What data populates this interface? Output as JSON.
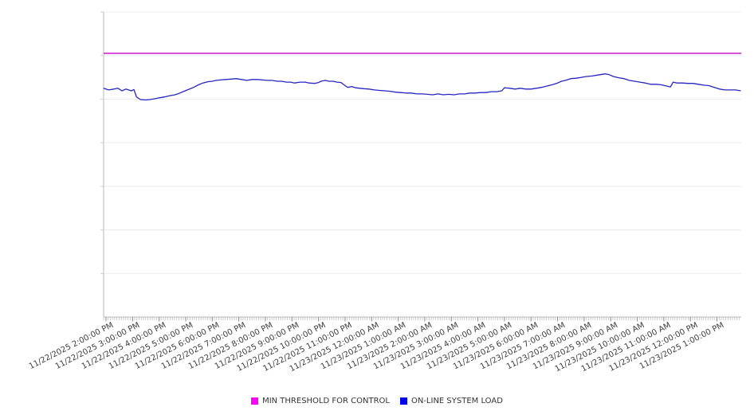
{
  "page": {
    "background": "#ffffff"
  },
  "chart_data": {
    "type": "line",
    "title": "",
    "xlabel": "",
    "ylabel": "",
    "grid": true,
    "x_axis": {
      "tick_labels": [
        "11/22/2025 2:00:00 PM",
        "11/22/2025 3:00:00 PM",
        "11/22/2025 4:00:00 PM",
        "11/22/2025 5:00:00 PM",
        "11/22/2025 6:00:00 PM",
        "11/22/2025 7:00:00 PM",
        "11/22/2025 8:00:00 PM",
        "11/22/2025 9:00:00 PM",
        "11/22/2025 10:00:00 PM",
        "11/22/2025 11:00:00 PM",
        "11/23/2025 12:00:00 AM",
        "11/23/2025 1:00:00 AM",
        "11/23/2025 2:00:00 AM",
        "11/23/2025 3:00:00 AM",
        "11/23/2025 4:00:00 AM",
        "11/23/2025 5:00:00 AM",
        "11/23/2025 6:00:00 AM",
        "11/23/2025 7:00:00 AM",
        "11/23/2025 8:00:00 AM",
        "11/23/2025 9:00:00 AM",
        "11/23/2025 10:00:00 AM",
        "11/23/2025 11:00:00 AM",
        "11/23/2025 12:00:00 PM",
        "11/23/2025 1:00:00 PM"
      ],
      "tick_interval_hours": 1
    },
    "y_axis": {
      "labels_visible": false,
      "range_divisions": [
        0,
        7
      ]
    },
    "series": [
      {
        "name": "MIN THRESHOLD FOR CONTROL",
        "color": "#ff00ff",
        "line_color": "#d023d0",
        "type": "constant",
        "value_units": 6.05
      },
      {
        "name": "ON-LINE SYSTEM LOAD",
        "color": "#0000ee",
        "line_color": "#2525c2",
        "type": "line",
        "points": [
          [
            -0.1,
            5.25
          ],
          [
            0.1,
            5.21
          ],
          [
            0.3,
            5.23
          ],
          [
            0.45,
            5.25
          ],
          [
            0.6,
            5.19
          ],
          [
            0.75,
            5.23
          ],
          [
            0.95,
            5.19
          ],
          [
            1.05,
            5.22
          ],
          [
            1.15,
            5.05
          ],
          [
            1.3,
            4.99
          ],
          [
            1.5,
            4.98
          ],
          [
            1.65,
            4.99
          ],
          [
            1.85,
            5.01
          ],
          [
            2.0,
            5.03
          ],
          [
            2.2,
            5.05
          ],
          [
            2.4,
            5.08
          ],
          [
            2.6,
            5.1
          ],
          [
            2.75,
            5.13
          ],
          [
            2.9,
            5.17
          ],
          [
            3.1,
            5.22
          ],
          [
            3.3,
            5.27
          ],
          [
            3.45,
            5.32
          ],
          [
            3.65,
            5.37
          ],
          [
            3.85,
            5.4
          ],
          [
            4.0,
            5.41
          ],
          [
            4.15,
            5.43
          ],
          [
            4.3,
            5.44
          ],
          [
            4.5,
            5.45
          ],
          [
            4.7,
            5.46
          ],
          [
            4.9,
            5.47
          ],
          [
            5.1,
            5.45
          ],
          [
            5.3,
            5.43
          ],
          [
            5.5,
            5.45
          ],
          [
            5.7,
            5.45
          ],
          [
            5.9,
            5.44
          ],
          [
            6.05,
            5.43
          ],
          [
            6.25,
            5.43
          ],
          [
            6.45,
            5.41
          ],
          [
            6.6,
            5.41
          ],
          [
            6.8,
            5.39
          ],
          [
            6.95,
            5.39
          ],
          [
            7.1,
            5.37
          ],
          [
            7.3,
            5.39
          ],
          [
            7.5,
            5.39
          ],
          [
            7.65,
            5.37
          ],
          [
            7.85,
            5.36
          ],
          [
            8.0,
            5.38
          ],
          [
            8.1,
            5.41
          ],
          [
            8.25,
            5.43
          ],
          [
            8.4,
            5.41
          ],
          [
            8.55,
            5.41
          ],
          [
            8.7,
            5.39
          ],
          [
            8.85,
            5.38
          ],
          [
            9.0,
            5.31
          ],
          [
            9.1,
            5.27
          ],
          [
            9.25,
            5.29
          ],
          [
            9.4,
            5.26
          ],
          [
            9.55,
            5.25
          ],
          [
            9.7,
            5.24
          ],
          [
            9.9,
            5.23
          ],
          [
            10.1,
            5.21
          ],
          [
            10.3,
            5.2
          ],
          [
            10.5,
            5.19
          ],
          [
            10.7,
            5.18
          ],
          [
            10.9,
            5.16
          ],
          [
            11.1,
            5.15
          ],
          [
            11.3,
            5.14
          ],
          [
            11.5,
            5.14
          ],
          [
            11.7,
            5.12
          ],
          [
            11.9,
            5.12
          ],
          [
            12.1,
            5.11
          ],
          [
            12.3,
            5.1
          ],
          [
            12.5,
            5.12
          ],
          [
            12.7,
            5.1
          ],
          [
            12.9,
            5.11
          ],
          [
            13.1,
            5.1
          ],
          [
            13.3,
            5.12
          ],
          [
            13.5,
            5.12
          ],
          [
            13.7,
            5.14
          ],
          [
            13.9,
            5.14
          ],
          [
            14.1,
            5.15
          ],
          [
            14.3,
            5.15
          ],
          [
            14.5,
            5.17
          ],
          [
            14.7,
            5.17
          ],
          [
            14.9,
            5.19
          ],
          [
            15.0,
            5.26
          ],
          [
            15.2,
            5.25
          ],
          [
            15.4,
            5.23
          ],
          [
            15.6,
            5.25
          ],
          [
            15.8,
            5.23
          ],
          [
            16.0,
            5.23
          ],
          [
            16.2,
            5.25
          ],
          [
            16.4,
            5.27
          ],
          [
            16.6,
            5.3
          ],
          [
            16.8,
            5.33
          ],
          [
            17.0,
            5.37
          ],
          [
            17.15,
            5.41
          ],
          [
            17.3,
            5.43
          ],
          [
            17.5,
            5.47
          ],
          [
            17.7,
            5.48
          ],
          [
            17.9,
            5.5
          ],
          [
            18.1,
            5.52
          ],
          [
            18.3,
            5.53
          ],
          [
            18.5,
            5.55
          ],
          [
            18.7,
            5.57
          ],
          [
            18.8,
            5.58
          ],
          [
            18.95,
            5.56
          ],
          [
            19.1,
            5.52
          ],
          [
            19.3,
            5.49
          ],
          [
            19.5,
            5.47
          ],
          [
            19.7,
            5.43
          ],
          [
            19.9,
            5.41
          ],
          [
            20.1,
            5.39
          ],
          [
            20.3,
            5.37
          ],
          [
            20.5,
            5.34
          ],
          [
            20.7,
            5.34
          ],
          [
            20.9,
            5.33
          ],
          [
            21.1,
            5.3
          ],
          [
            21.25,
            5.28
          ],
          [
            21.35,
            5.39
          ],
          [
            21.5,
            5.37
          ],
          [
            21.7,
            5.37
          ],
          [
            21.9,
            5.36
          ],
          [
            22.1,
            5.36
          ],
          [
            22.3,
            5.34
          ],
          [
            22.5,
            5.32
          ],
          [
            22.7,
            5.31
          ],
          [
            22.9,
            5.27
          ],
          [
            23.1,
            5.23
          ],
          [
            23.3,
            5.21
          ],
          [
            23.5,
            5.21
          ],
          [
            23.7,
            5.21
          ],
          [
            23.9,
            5.19
          ]
        ]
      }
    ],
    "legend": {
      "position": "bottom-center"
    }
  }
}
